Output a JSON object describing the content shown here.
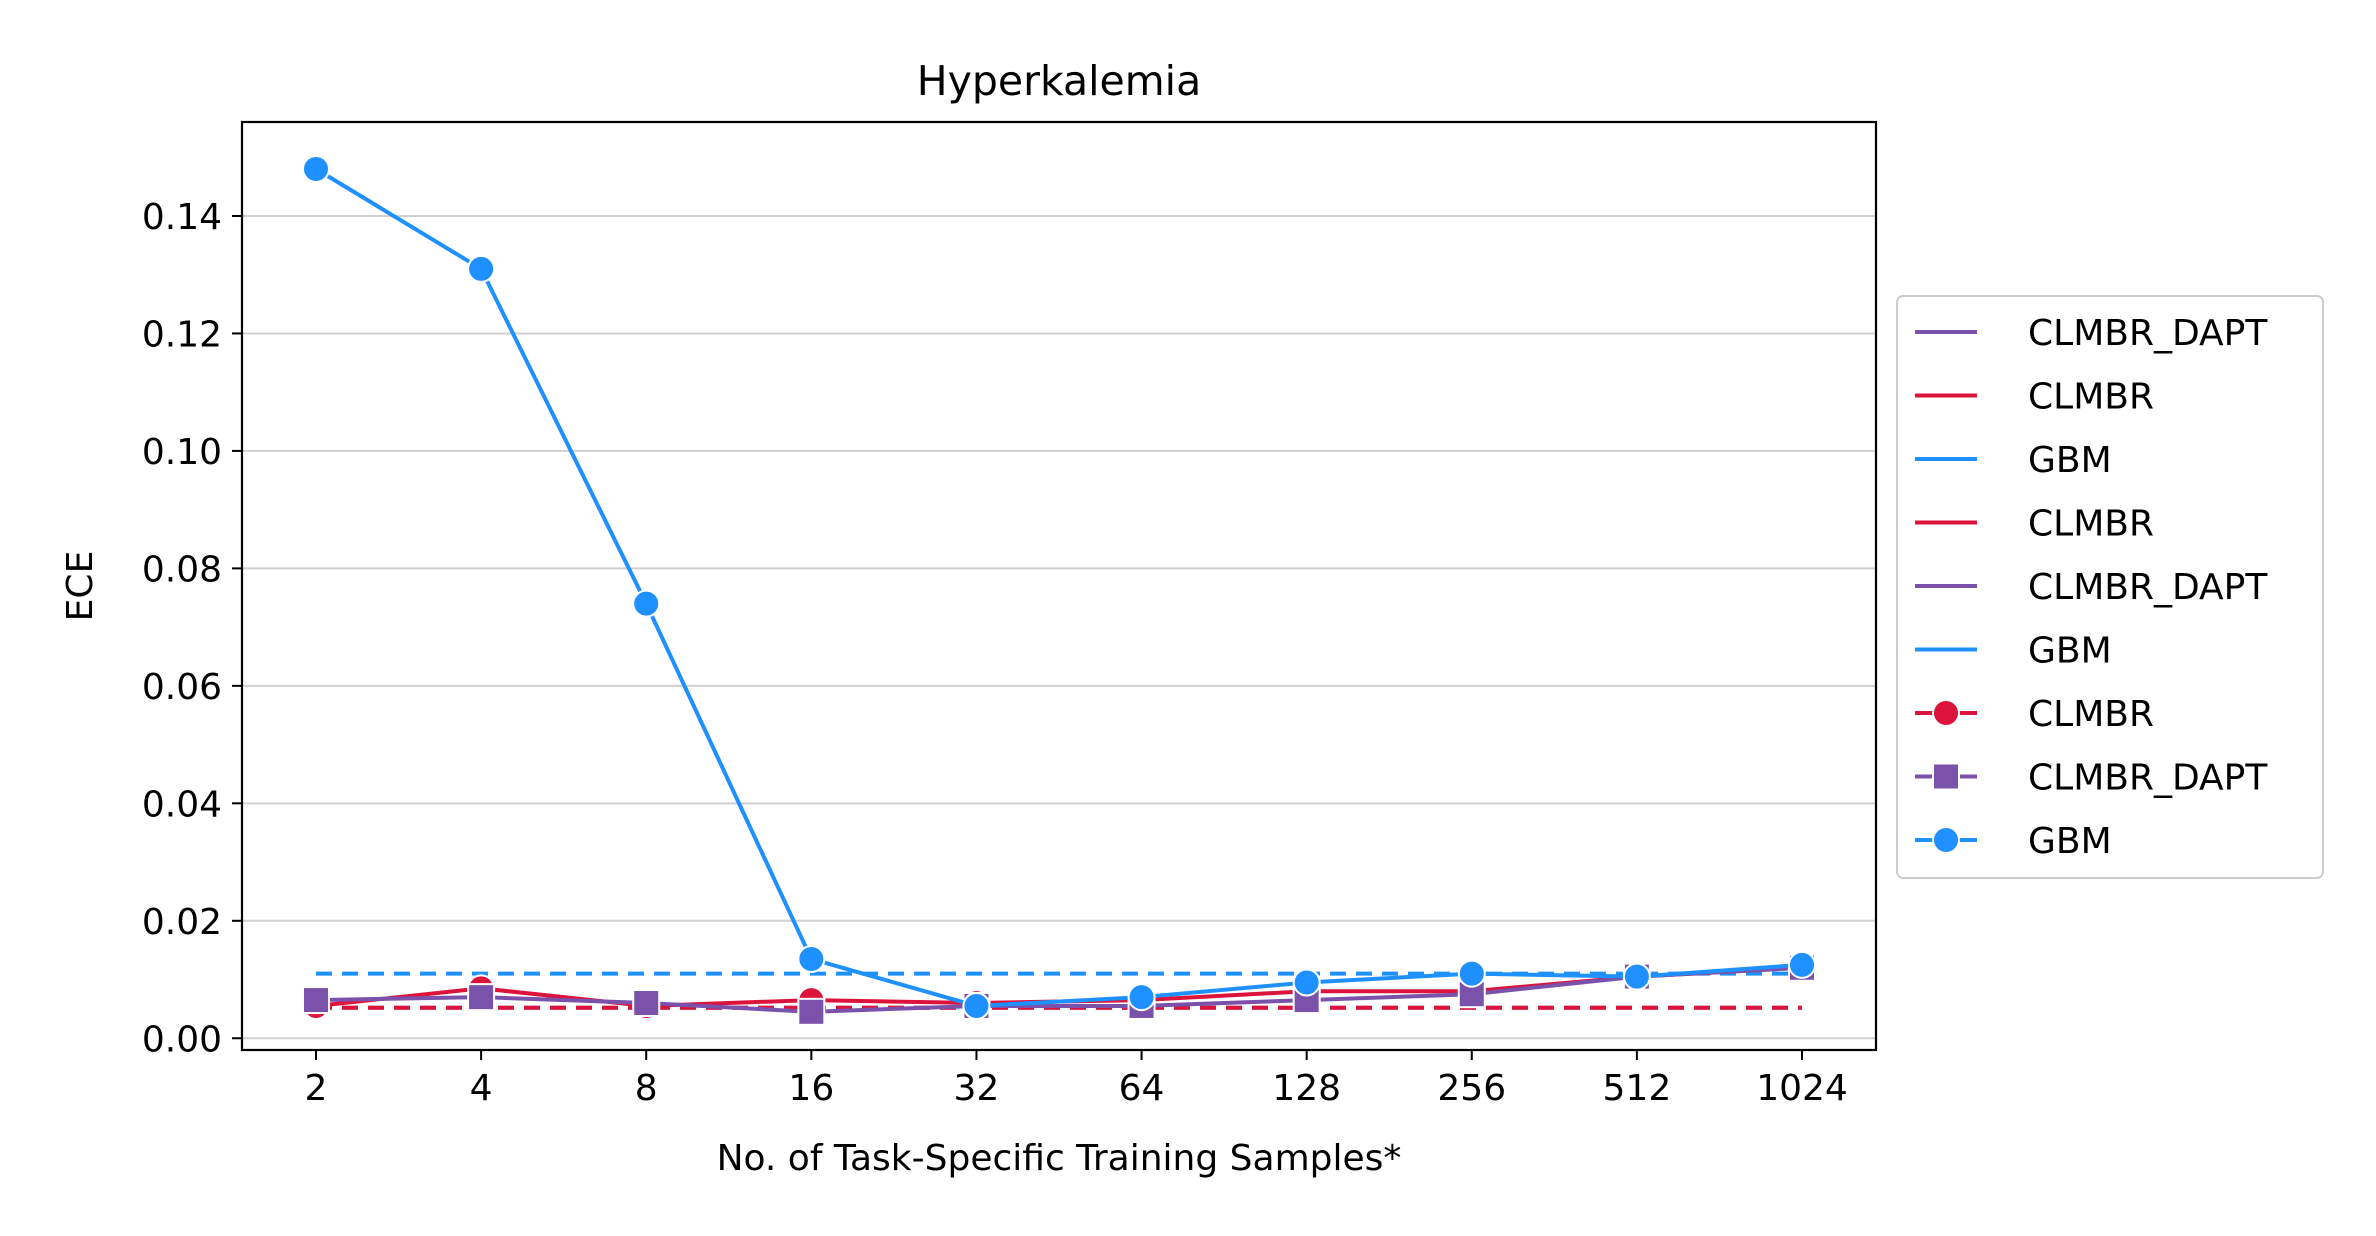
{
  "chart_data": {
    "type": "line",
    "title": "Hyperkalemia",
    "xlabel": "No. of Task-Specific Training Samples*",
    "ylabel": "ECE",
    "x_categories": [
      "2",
      "4",
      "8",
      "16",
      "32",
      "64",
      "128",
      "256",
      "512",
      "1024"
    ],
    "ylim": [
      -0.002,
      0.156
    ],
    "yticks": [
      0.0,
      0.02,
      0.04,
      0.06,
      0.08,
      0.1,
      0.12,
      0.14
    ],
    "ytick_labels": [
      "0.00",
      "0.02",
      "0.04",
      "0.06",
      "0.08",
      "0.10",
      "0.12",
      "0.14"
    ],
    "grid": "horizontal",
    "legend_position": "right-outside",
    "series": [
      {
        "name": "CLMBR",
        "color": "#DC143C",
        "marker": "circle",
        "values": [
          0.0055,
          0.0085,
          0.0055,
          0.0065,
          0.006,
          0.0065,
          0.008,
          0.008,
          0.0105,
          0.012
        ]
      },
      {
        "name": "CLMBR_DAPT",
        "color": "#7B52AB",
        "marker": "square",
        "values": [
          0.0065,
          0.007,
          0.006,
          0.0045,
          0.0055,
          0.0055,
          0.0065,
          0.0075,
          0.0105,
          0.012
        ]
      },
      {
        "name": "GBM",
        "color": "#1E90FF",
        "marker": "circle",
        "values": [
          0.148,
          0.131,
          0.074,
          0.0135,
          0.0055,
          0.007,
          0.0095,
          0.011,
          0.0105,
          0.0125
        ]
      }
    ],
    "baselines": [
      {
        "name": "CLMBR_DAPT",
        "color": "#7B52AB",
        "value": 0.0052
      },
      {
        "name": "CLMBR",
        "color": "#DC143C",
        "value": 0.0052
      },
      {
        "name": "GBM",
        "color": "#1E90FF",
        "value": 0.011
      }
    ],
    "legend": [
      {
        "label": "CLMBR_DAPT",
        "color": "#7B52AB",
        "marker": "none"
      },
      {
        "label": "CLMBR",
        "color": "#DC143C",
        "marker": "none"
      },
      {
        "label": "GBM",
        "color": "#1E90FF",
        "marker": "none"
      },
      {
        "label": "CLMBR",
        "color": "#DC143C",
        "marker": "none"
      },
      {
        "label": "CLMBR_DAPT",
        "color": "#7B52AB",
        "marker": "none"
      },
      {
        "label": "GBM",
        "color": "#1E90FF",
        "marker": "none"
      },
      {
        "label": "CLMBR",
        "color": "#DC143C",
        "marker": "circle"
      },
      {
        "label": "CLMBR_DAPT",
        "color": "#7B52AB",
        "marker": "square"
      },
      {
        "label": "GBM",
        "color": "#1E90FF",
        "marker": "circle"
      }
    ]
  }
}
